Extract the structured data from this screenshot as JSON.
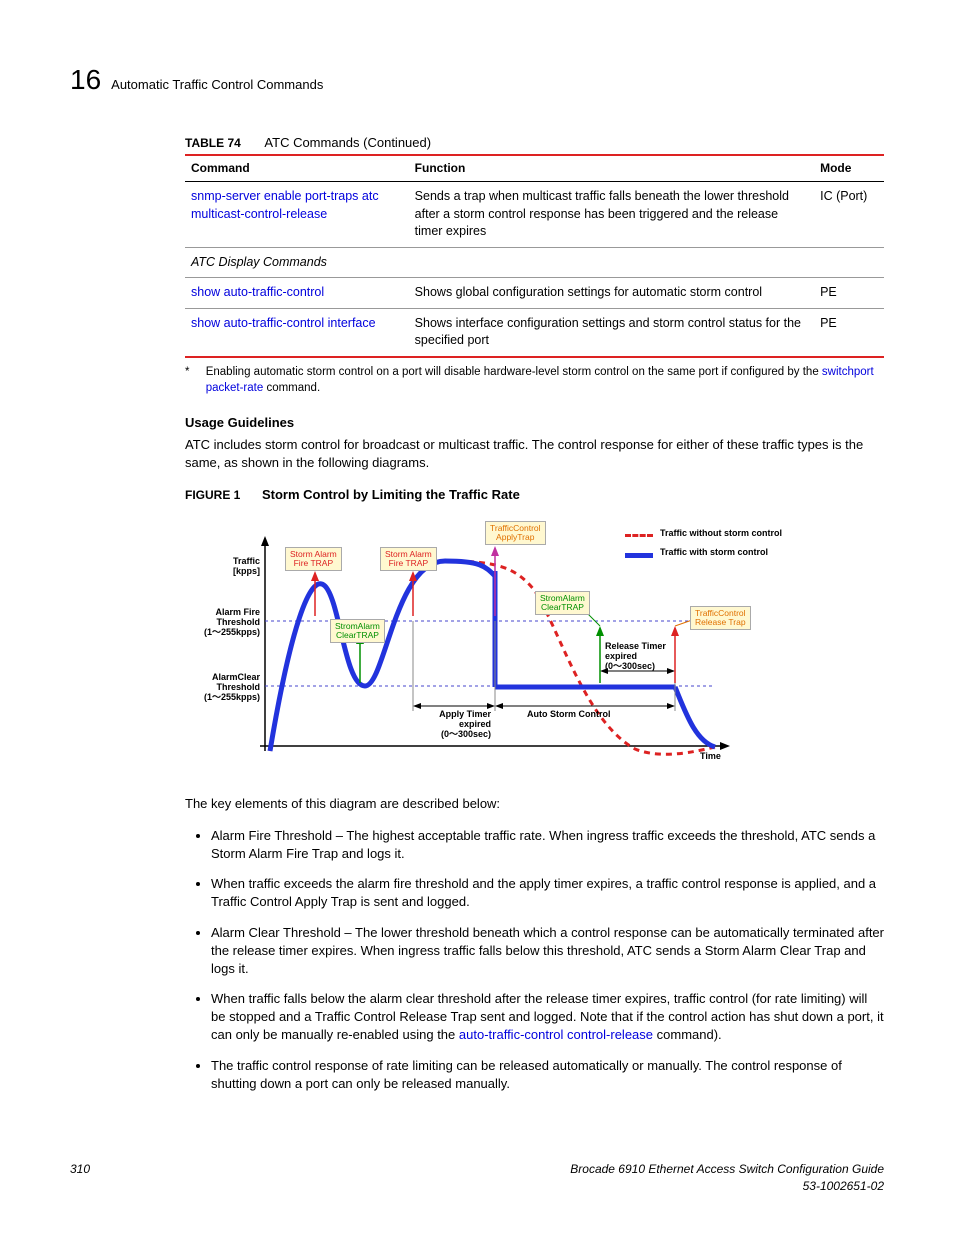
{
  "header": {
    "chapter_number": "16",
    "chapter_title": "Automatic Traffic Control Commands"
  },
  "table": {
    "label": "TABLE 74",
    "title": "ATC Commands (Continued)",
    "columns": [
      "Command",
      "Function",
      "Mode"
    ],
    "rows": [
      {
        "command": "snmp-server enable port-traps atc multicast-control-release",
        "function": "Sends a trap when multicast traffic falls beneath the lower threshold after a storm control response has been triggered and the release timer expires",
        "mode": "IC (Port)",
        "is_section": false
      },
      {
        "command": "ATC Display Commands",
        "function": "",
        "mode": "",
        "is_section": true
      },
      {
        "command": "show auto-traffic-control",
        "function": "Shows global configuration settings for automatic storm control",
        "mode": "PE",
        "is_section": false
      },
      {
        "command": "show auto-traffic-control interface",
        "function": "Shows interface configuration settings and storm control status for the specified port",
        "mode": "PE",
        "is_section": false
      }
    ]
  },
  "footnote": {
    "marker": "*",
    "text_before": "Enabling automatic storm control on a port will disable hardware-level storm control on the same port if configured by the ",
    "link": "switchport packet-rate",
    "text_after": " command."
  },
  "usage": {
    "heading": "Usage Guidelines",
    "text": "ATC includes storm control for broadcast or multicast traffic. The control response for either of these traffic types is the same, as shown in the following diagrams."
  },
  "figure": {
    "label": "FIGURE 1",
    "title": "Storm Control by Limiting the Traffic Rate",
    "legend": {
      "without": "Traffic without storm control",
      "with": "Traffic with storm control"
    },
    "ylabel": "Traffic\n[kpps]",
    "xlabel": "Time",
    "fire_threshold": "Alarm Fire\nThreshold\n(1～255kpps)",
    "clear_threshold": "AlarmClear\nThreshold\n(1～255kpps)",
    "callouts": {
      "fire1": "Storm Alarm\nFire TRAP",
      "fire2": "Storm Alarm\nFire TRAP",
      "tc_apply": "TrafficControl\nApplyTrap",
      "clear1": "StromAlarm\nClearTRAP",
      "clear2": "StromAlarm\nClearTRAP",
      "tc_release": "TrafficControl\nRelease Trap"
    },
    "apply_timer": "Apply Timer\nexpired\n(0～300sec)",
    "release_timer": "Release Timer\nexpired\n(0～300sec)",
    "auto_storm": "Auto Storm Control",
    "colors": {
      "red": "#d22",
      "orange": "#e07000",
      "green": "#009000",
      "blue": "#2233dd",
      "callout_bg": "#fff8d0"
    }
  },
  "key_intro": "The key elements of this diagram are described below:",
  "bullets": [
    {
      "text": "Alarm Fire Threshold – The highest acceptable traffic rate. When ingress traffic exceeds the threshold, ATC sends a Storm Alarm Fire Trap and logs it."
    },
    {
      "text": "When traffic exceeds the alarm fire threshold and the apply timer expires, a traffic control response is applied, and a Traffic Control Apply Trap is sent and logged."
    },
    {
      "text": "Alarm Clear Threshold – The lower threshold beneath which a control response can be automatically terminated after the release timer expires. When ingress traffic falls below this threshold, ATC sends a Storm Alarm Clear Trap and logs it."
    },
    {
      "text_before": "When traffic falls below the alarm clear threshold after the release timer expires, traffic control (for rate limiting) will be stopped and a Traffic Control Release Trap sent and logged. Note that if the control action has shut down a port, it can only be manually re-enabled using the ",
      "link": "auto-traffic-control control-release",
      "text_after": " command)."
    },
    {
      "text": "The traffic control response of rate limiting can be released automatically or manually. The control response of shutting down a port can only be released manually."
    }
  ],
  "footer": {
    "page_number": "310",
    "guide_title": "Brocade 6910 Ethernet Access Switch Configuration Guide",
    "doc_number": "53-1002651-02"
  }
}
